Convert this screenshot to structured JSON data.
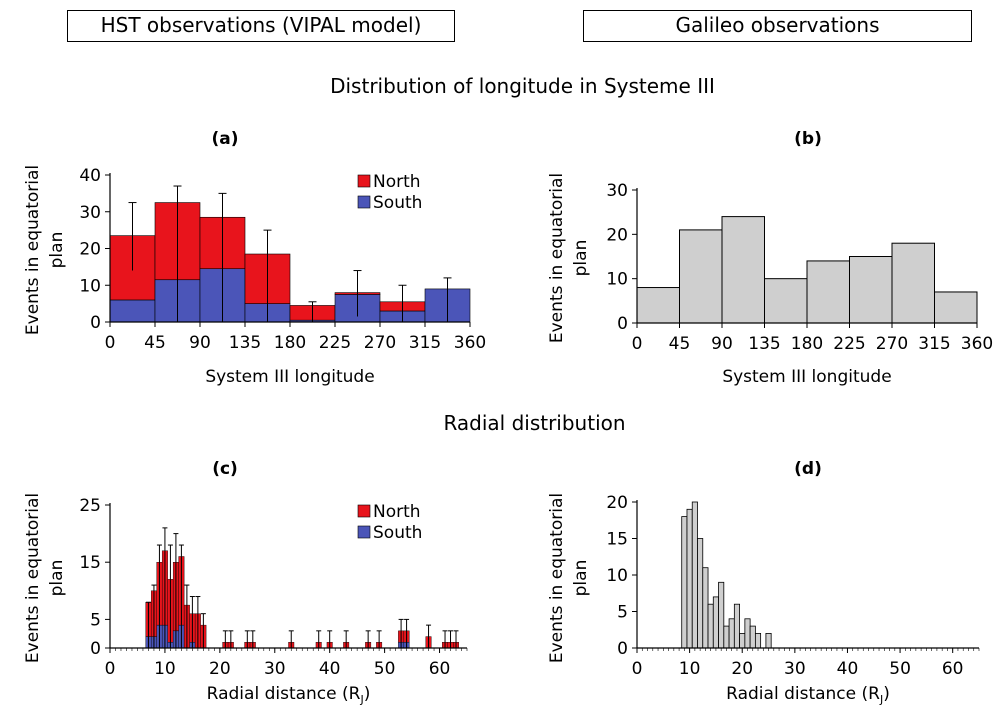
{
  "headers": {
    "left": "HST observations (VIPAL model)",
    "right": "Galileo observations"
  },
  "sections": {
    "longitude_title": "Distribution of longitude in Systeme III",
    "radial_title": "Radial distribution"
  },
  "colors": {
    "north": "#e8141c",
    "south": "#4b55b8",
    "galileo": "#cfcfcf",
    "axis": "#000000"
  },
  "chart_data": [
    {
      "id": "a",
      "panel_label": "(a)",
      "type": "bar",
      "stacked": true,
      "xlabel": "System III longitude",
      "ylabel": [
        "Events in equatorial",
        "plan"
      ],
      "xlim": [
        0,
        360
      ],
      "ylim": [
        0,
        40
      ],
      "xticks": [
        0,
        45,
        90,
        135,
        180,
        225,
        270,
        315,
        360
      ],
      "yticks": [
        0,
        10,
        20,
        30,
        40
      ],
      "bin_edges": [
        0,
        45,
        90,
        135,
        180,
        225,
        270,
        315,
        360
      ],
      "series": [
        {
          "name": "South",
          "values": [
            6,
            11.5,
            14.5,
            5,
            0.5,
            7.5,
            3,
            9
          ]
        },
        {
          "name": "North",
          "values": [
            17.5,
            21,
            14,
            13.5,
            4,
            0.5,
            2.5,
            0
          ]
        }
      ],
      "error_x": [
        22.5,
        67.5,
        112.5,
        157.5,
        202.5,
        247.5,
        292.5,
        337.5
      ],
      "error_center": [
        23.5,
        32.5,
        28.5,
        18.5,
        4.5,
        8,
        5.5,
        9
      ],
      "error_top": [
        32.5,
        37,
        35,
        25,
        5.5,
        14,
        10,
        12
      ],
      "error_bottom": [
        14,
        0,
        0,
        0,
        0,
        1.5,
        0,
        0
      ],
      "legend": [
        "North",
        "South"
      ],
      "legend_position": "top-right"
    },
    {
      "id": "b",
      "panel_label": "(b)",
      "type": "bar",
      "xlabel": "System III longitude",
      "ylabel": [
        "Events in equatorial",
        "plan"
      ],
      "xlim": [
        0,
        360
      ],
      "ylim": [
        0,
        30
      ],
      "xticks": [
        0,
        45,
        90,
        135,
        180,
        225,
        270,
        315,
        360
      ],
      "yticks": [
        0,
        10,
        20,
        30
      ],
      "bin_edges": [
        0,
        45,
        90,
        135,
        180,
        225,
        270,
        315,
        360
      ],
      "values": [
        8,
        21,
        24,
        10,
        14,
        15,
        18,
        7
      ]
    },
    {
      "id": "c",
      "panel_label": "(c)",
      "type": "bar",
      "stacked": true,
      "xlabel": "Radial distance (R",
      "xlabel_sub": "J",
      "xlabel_end": ")",
      "ylabel": [
        "Events in equatorial",
        "plan"
      ],
      "xlim": [
        0,
        65
      ],
      "ylim": [
        0,
        25
      ],
      "xticks": [
        0,
        10,
        20,
        30,
        40,
        50,
        60
      ],
      "yticks": [
        0,
        5,
        15,
        25
      ],
      "bin_width": 1,
      "bins": [
        {
          "x": 7,
          "south": 2,
          "north": 6,
          "err": 8
        },
        {
          "x": 8,
          "south": 2,
          "north": 8,
          "err": 11
        },
        {
          "x": 9,
          "south": 4,
          "north": 11,
          "err": 18
        },
        {
          "x": 10,
          "south": 4,
          "north": 13,
          "err": 21
        },
        {
          "x": 11,
          "south": 1,
          "north": 11,
          "err": 18
        },
        {
          "x": 12,
          "south": 3,
          "north": 12,
          "err": 20
        },
        {
          "x": 13,
          "south": 4,
          "north": 12,
          "err": 18
        },
        {
          "x": 14,
          "south": 0,
          "north": 7.5,
          "err": 11
        },
        {
          "x": 15,
          "south": 1,
          "north": 5,
          "err": 9
        },
        {
          "x": 16,
          "south": 0,
          "north": 6,
          "err": 9
        },
        {
          "x": 17,
          "south": 0,
          "north": 4,
          "err": 6
        },
        {
          "x": 21,
          "south": 0,
          "north": 1,
          "err": 3
        },
        {
          "x": 22,
          "south": 0,
          "north": 1,
          "err": 3
        },
        {
          "x": 25,
          "south": 0,
          "north": 1,
          "err": 3
        },
        {
          "x": 26,
          "south": 0,
          "north": 1,
          "err": 3
        },
        {
          "x": 33,
          "south": 0,
          "north": 1,
          "err": 3
        },
        {
          "x": 38,
          "south": 0,
          "north": 1,
          "err": 3
        },
        {
          "x": 40,
          "south": 0,
          "north": 1,
          "err": 3
        },
        {
          "x": 43,
          "south": 0,
          "north": 1,
          "err": 3
        },
        {
          "x": 47,
          "south": 0,
          "north": 1,
          "err": 3
        },
        {
          "x": 49,
          "south": 0,
          "north": 1,
          "err": 3
        },
        {
          "x": 53,
          "south": 1,
          "north": 2,
          "err": 5
        },
        {
          "x": 54,
          "south": 1,
          "north": 2,
          "err": 5
        },
        {
          "x": 58,
          "south": 0,
          "north": 2,
          "err": 4
        },
        {
          "x": 61,
          "south": 0,
          "north": 1,
          "err": 3
        },
        {
          "x": 62,
          "south": 0,
          "north": 1,
          "err": 3
        },
        {
          "x": 63,
          "south": 0,
          "north": 1,
          "err": 3
        }
      ],
      "legend": [
        "North",
        "South"
      ],
      "legend_position": "top-right"
    },
    {
      "id": "d",
      "panel_label": "(d)",
      "type": "bar",
      "xlabel": "Radial distance (R",
      "xlabel_sub": "J",
      "xlabel_end": ")",
      "ylabel": [
        "Events in equatorial",
        "plan"
      ],
      "xlim": [
        0,
        65
      ],
      "ylim": [
        0,
        20
      ],
      "xticks": [
        0,
        10,
        20,
        30,
        40,
        50,
        60
      ],
      "yticks": [
        0,
        5,
        10,
        15,
        20
      ],
      "bin_width": 1,
      "bins": [
        {
          "x": 9,
          "v": 18
        },
        {
          "x": 10,
          "v": 19
        },
        {
          "x": 11,
          "v": 20
        },
        {
          "x": 12,
          "v": 15
        },
        {
          "x": 13,
          "v": 11
        },
        {
          "x": 14,
          "v": 6
        },
        {
          "x": 15,
          "v": 7
        },
        {
          "x": 16,
          "v": 9
        },
        {
          "x": 17,
          "v": 3
        },
        {
          "x": 18,
          "v": 4
        },
        {
          "x": 19,
          "v": 6
        },
        {
          "x": 20,
          "v": 2
        },
        {
          "x": 21,
          "v": 4
        },
        {
          "x": 22,
          "v": 3
        },
        {
          "x": 23,
          "v": 2
        },
        {
          "x": 25,
          "v": 2
        }
      ]
    }
  ]
}
